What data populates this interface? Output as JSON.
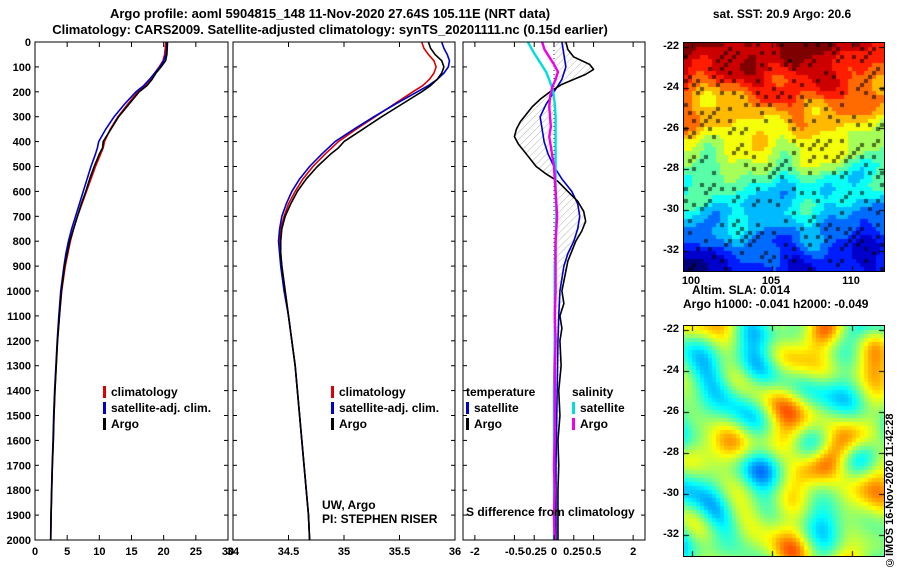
{
  "header": {
    "title_line1": "Argo profile: aoml 5904815_148 11-Nov-2020 27.64S 105.11E (NRT data)",
    "title_line2": "Climatology: CARS2009. Satellite-adjusted climatology: synTS_20201111.nc (0.15d earlier)"
  },
  "footer": {
    "copyright": "©IMOS 16-Nov-2020 11:42:28"
  },
  "chart_data": [
    {
      "type": "line",
      "name": "temperature-profile",
      "xlabel": "",
      "ylabel": "",
      "xlim": [
        0,
        30
      ],
      "xticks": [
        0,
        5,
        10,
        15,
        20,
        25,
        30
      ],
      "ylim": [
        2000,
        0
      ],
      "yticks": [
        0,
        100,
        200,
        300,
        400,
        500,
        600,
        700,
        800,
        900,
        1000,
        1100,
        1200,
        1300,
        1400,
        1500,
        1600,
        1700,
        1800,
        1900,
        2000
      ],
      "legend": [
        "climatology",
        "satellite-adj. clim.",
        "Argo"
      ],
      "series": [
        {
          "name": "climatology",
          "color": "#dd0000",
          "depth": [
            0,
            25,
            50,
            75,
            100,
            125,
            150,
            175,
            200,
            250,
            300,
            350,
            400,
            425,
            450,
            500,
            550,
            600,
            650,
            700,
            750,
            800,
            850,
            900,
            1000,
            1100,
            1200,
            1300,
            1400,
            1500,
            1600,
            1700,
            1800,
            1900,
            2000
          ],
          "values": [
            20.3,
            20.25,
            20.15,
            19.9,
            19.3,
            18.6,
            17.9,
            17.1,
            16.0,
            14.4,
            12.9,
            11.7,
            10.8,
            10.6,
            10.2,
            9.4,
            8.7,
            8.0,
            7.3,
            6.6,
            6.0,
            5.5,
            5.1,
            4.7,
            4.15,
            3.8,
            3.5,
            3.3,
            3.1,
            2.95,
            2.85,
            2.7,
            2.6,
            2.5,
            2.45
          ]
        },
        {
          "name": "satellite-adj. clim.",
          "color": "#0000cc",
          "depth": [
            0,
            25,
            50,
            75,
            100,
            125,
            150,
            175,
            200,
            250,
            300,
            350,
            400,
            425,
            450,
            500,
            550,
            600,
            650,
            700,
            750,
            800,
            850,
            900,
            1000,
            1100,
            1200,
            1300,
            1400,
            1500,
            1600,
            1700,
            1800,
            1900,
            2000
          ],
          "values": [
            20.5,
            20.45,
            20.35,
            20.0,
            19.4,
            18.6,
            17.8,
            16.9,
            15.7,
            13.9,
            12.3,
            11.0,
            9.9,
            9.7,
            9.4,
            8.7,
            8.1,
            7.5,
            6.9,
            6.3,
            5.7,
            5.2,
            4.8,
            4.5,
            4.0,
            3.7,
            3.45,
            3.25,
            3.05,
            2.9,
            2.8,
            2.67,
            2.57,
            2.48,
            2.43
          ]
        },
        {
          "name": "Argo",
          "color": "#000000",
          "depth": [
            0,
            25,
            50,
            75,
            100,
            125,
            150,
            175,
            200,
            250,
            300,
            350,
            400,
            425,
            450,
            500,
            550,
            600,
            650,
            700,
            750,
            800,
            850,
            900,
            1000,
            1100,
            1200,
            1300,
            1400,
            1500,
            1600,
            1700,
            1800,
            1900,
            2000
          ],
          "values": [
            20.6,
            20.55,
            20.5,
            20.3,
            19.6,
            18.8,
            18.2,
            17.4,
            16.2,
            14.6,
            13.0,
            11.8,
            10.6,
            10.5,
            10.0,
            9.2,
            8.5,
            7.9,
            7.2,
            6.6,
            6.0,
            5.4,
            5.0,
            4.6,
            4.1,
            3.8,
            3.5,
            3.3,
            3.1,
            2.95,
            2.85,
            2.7,
            2.6,
            2.5,
            2.45
          ]
        }
      ]
    },
    {
      "type": "line",
      "name": "salinity-profile",
      "xlabel": "",
      "ylabel": "",
      "xlim": [
        34,
        36
      ],
      "xticks": [
        34,
        34.5,
        35,
        35.5,
        36
      ],
      "ylim": [
        2000,
        0
      ],
      "legend": [
        "climatology",
        "satellite-adj. clim.",
        "Argo"
      ],
      "annotations": [
        "UW, Argo",
        "PI: STEPHEN RISER"
      ],
      "series": [
        {
          "name": "climatology",
          "color": "#dd0000",
          "depth": [
            0,
            25,
            50,
            75,
            100,
            125,
            150,
            175,
            200,
            250,
            300,
            350,
            400,
            425,
            450,
            500,
            550,
            600,
            650,
            700,
            750,
            800,
            850,
            900,
            1000,
            1100,
            1200,
            1300,
            1400,
            1500,
            1600,
            1700,
            1800,
            1900,
            2000
          ],
          "values": [
            35.7,
            35.72,
            35.76,
            35.81,
            35.83,
            35.81,
            35.77,
            35.71,
            35.62,
            35.45,
            35.28,
            35.11,
            34.95,
            34.89,
            34.83,
            34.72,
            34.63,
            34.56,
            34.5,
            34.46,
            34.43,
            34.42,
            34.43,
            34.44,
            34.47,
            34.5,
            34.53,
            34.56,
            34.58,
            34.6,
            34.62,
            34.64,
            34.66,
            34.68,
            34.69
          ]
        },
        {
          "name": "satellite-adj. clim.",
          "color": "#0000cc",
          "depth": [
            0,
            25,
            50,
            75,
            100,
            125,
            150,
            175,
            200,
            250,
            300,
            350,
            400,
            425,
            450,
            500,
            550,
            600,
            650,
            700,
            750,
            800,
            850,
            900,
            1000,
            1100,
            1200,
            1300,
            1400,
            1500,
            1600,
            1700,
            1800,
            1900,
            2000
          ],
          "values": [
            35.88,
            35.9,
            35.93,
            35.95,
            35.94,
            35.9,
            35.84,
            35.76,
            35.66,
            35.46,
            35.27,
            35.09,
            34.92,
            34.86,
            34.8,
            34.69,
            34.6,
            34.53,
            34.48,
            34.44,
            34.42,
            34.41,
            34.42,
            34.43,
            34.46,
            34.5,
            34.53,
            34.56,
            34.58,
            34.6,
            34.62,
            34.64,
            34.66,
            34.68,
            34.69
          ]
        },
        {
          "name": "Argo",
          "color": "#000000",
          "depth": [
            0,
            25,
            50,
            75,
            100,
            125,
            150,
            175,
            200,
            250,
            300,
            350,
            400,
            425,
            450,
            500,
            550,
            600,
            650,
            700,
            750,
            800,
            850,
            900,
            1000,
            1100,
            1200,
            1300,
            1400,
            1500,
            1600,
            1700,
            1800,
            1900,
            2000
          ],
          "values": [
            35.76,
            35.78,
            35.82,
            35.88,
            35.9,
            35.88,
            35.84,
            35.78,
            35.7,
            35.52,
            35.34,
            35.17,
            35.0,
            34.95,
            34.88,
            34.76,
            34.66,
            34.58,
            34.52,
            34.47,
            34.44,
            34.43,
            34.43,
            34.44,
            34.47,
            34.5,
            34.53,
            34.56,
            34.58,
            34.6,
            34.62,
            34.64,
            34.66,
            34.68,
            34.69
          ]
        }
      ]
    },
    {
      "type": "line",
      "name": "difference-from-climatology",
      "xlabel": "",
      "ylabel": "",
      "xlim": [
        -2.3,
        2.3
      ],
      "xticks": [
        {
          "label": "-2",
          "v": -2
        },
        {
          "label": "-0.5",
          "v": -1
        },
        {
          "label": "-0.25",
          "v": -0.5
        },
        {
          "label": "0",
          "v": 0
        },
        {
          "label": "0.25",
          "v": 0.5
        },
        {
          "label": "0.5",
          "v": 1
        },
        {
          "label": "2",
          "v": 2
        }
      ],
      "ylim": [
        2000,
        0
      ],
      "zero_line": true,
      "annotation": "S difference from climatology",
      "legend_groups": [
        {
          "header": "temperature",
          "items": [
            "satellite",
            "Argo"
          ]
        },
        {
          "header": "salinity",
          "items": [
            "satellite",
            "Argo"
          ]
        }
      ],
      "series": [
        {
          "name": "temperature satellite",
          "color": "#0000cc",
          "scale": 1,
          "depth": [
            0,
            50,
            100,
            150,
            200,
            250,
            300,
            350,
            400,
            450,
            500,
            550,
            600,
            650,
            700,
            750,
            800,
            850,
            900,
            1000,
            1100,
            1200,
            1300,
            1400,
            1500,
            1600,
            1700,
            1800,
            1900,
            2000
          ],
          "values": [
            0.2,
            0.25,
            0.3,
            0.2,
            0.0,
            -0.2,
            -0.35,
            -0.3,
            -0.25,
            -0.15,
            0.0,
            0.2,
            0.45,
            0.6,
            0.65,
            0.6,
            0.5,
            0.35,
            0.25,
            0.15,
            0.12,
            0.1,
            0.09,
            0.08,
            0.07,
            0.06,
            0.05,
            0.05,
            0.05,
            0.05
          ]
        },
        {
          "name": "temperature Argo",
          "color": "#000000",
          "scale": 1,
          "hatch_to_zero": true,
          "depth": [
            0,
            30,
            60,
            90,
            110,
            130,
            150,
            170,
            200,
            230,
            260,
            290,
            320,
            350,
            380,
            410,
            440,
            470,
            500,
            530,
            560,
            600,
            640,
            680,
            720,
            760,
            800,
            840,
            880,
            920,
            960,
            1000,
            1050,
            1100,
            1150,
            1200,
            1300,
            1400,
            1500,
            1600,
            1700,
            1800,
            1900,
            2000
          ],
          "values": [
            0.3,
            0.35,
            0.5,
            0.9,
            1.0,
            0.8,
            0.5,
            0.2,
            -0.1,
            -0.35,
            -0.55,
            -0.7,
            -0.85,
            -0.95,
            -1.0,
            -0.9,
            -0.75,
            -0.6,
            -0.45,
            -0.2,
            0.1,
            0.35,
            0.6,
            0.75,
            0.8,
            0.7,
            0.55,
            0.45,
            0.35,
            0.3,
            0.25,
            0.2,
            0.25,
            0.15,
            0.2,
            0.15,
            0.18,
            0.12,
            0.15,
            0.1,
            0.12,
            0.1,
            0.1,
            0.1
          ]
        },
        {
          "name": "salinity satellite",
          "color": "#00dddd",
          "scale": 2,
          "depth": [
            0,
            40,
            80,
            120,
            160,
            200,
            250,
            300,
            350,
            400,
            500,
            600,
            700,
            800,
            900,
            1000,
            1200,
            1400,
            1600,
            1800,
            2000
          ],
          "values": [
            -0.33,
            -0.26,
            -0.18,
            -0.1,
            -0.05,
            -0.01,
            0.01,
            0.02,
            0.02,
            0.02,
            0.02,
            0.02,
            0.03,
            0.02,
            0.01,
            0.01,
            0.01,
            0.0,
            0.0,
            0.0,
            0.0
          ]
        },
        {
          "name": "salinity Argo",
          "color": "#ee00ee",
          "scale": 2,
          "depth": [
            0,
            30,
            60,
            90,
            120,
            150,
            180,
            220,
            260,
            300,
            340,
            380,
            420,
            460,
            500,
            550,
            600,
            650,
            700,
            750,
            800,
            850,
            900,
            1000,
            1100,
            1200,
            1300,
            1400,
            1500,
            1600,
            1700,
            1800,
            1900,
            2000
          ],
          "values": [
            -0.15,
            -0.12,
            -0.06,
            0.0,
            0.05,
            0.02,
            -0.02,
            -0.05,
            -0.06,
            -0.05,
            -0.04,
            -0.06,
            -0.04,
            -0.02,
            0.0,
            0.01,
            0.02,
            0.03,
            0.04,
            0.03,
            0.02,
            0.02,
            0.02,
            0.02,
            0.01,
            0.02,
            0.01,
            0.01,
            0.01,
            0.01,
            0.0,
            0.01,
            0.0,
            0.01
          ]
        }
      ]
    },
    {
      "type": "heatmap",
      "name": "sst-map",
      "title": "sat. SST: 20.9 Argo: 20.6",
      "colormap": "jet",
      "pattern": "warm-top-cold-bottom",
      "lon_range": [
        99.5,
        112
      ],
      "lat_range": [
        -21.8,
        -33.0
      ],
      "xticks": [
        100,
        105,
        110
      ],
      "yticks": [
        -22,
        -24,
        -26,
        -28,
        -30,
        -32
      ]
    },
    {
      "type": "heatmap",
      "name": "sla-map",
      "title_line1": "Altim. SLA: 0.014",
      "title_line2": "Argo h1000: -0.041 h2000: -0.049",
      "colormap": "jet",
      "pattern": "mid-green-with-blobs",
      "lon_range": [
        99.5,
        112
      ],
      "lat_range": [
        -21.8,
        -33.0
      ],
      "xticks": [
        100,
        105,
        110
      ],
      "yticks": [
        -22,
        -24,
        -26,
        -28,
        -30,
        -32
      ]
    }
  ]
}
